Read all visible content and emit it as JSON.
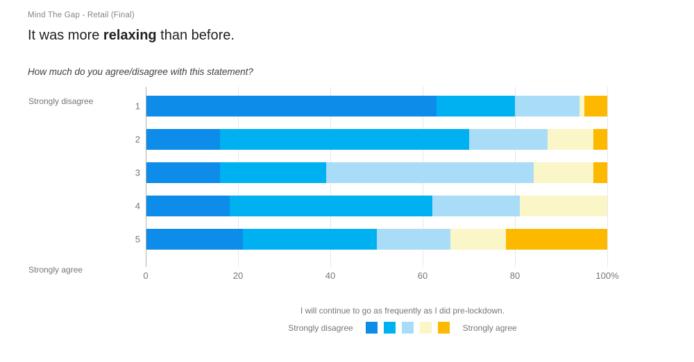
{
  "header": {
    "project_label": "Mind The Gap - Retail (Final)",
    "title": {
      "prefix": "It was more ",
      "emphasis": "relaxing",
      "suffix": " than before."
    },
    "question": "How much do you agree/disagree with this statement?"
  },
  "chart_data": {
    "type": "bar",
    "stacked": true,
    "orientation": "horizontal",
    "title": "It was more relaxing than before.",
    "xlabel": "",
    "ylabel": "",
    "xlim": [
      0,
      100
    ],
    "grid": true,
    "categories": [
      "1",
      "2",
      "3",
      "4",
      "5"
    ],
    "y_axis_top_label": "Strongly disagree",
    "y_axis_bottom_label": "Strongly agree",
    "x_axis": {
      "ticks": [
        0,
        20,
        40,
        60,
        80,
        100
      ],
      "tick_labels": [
        "0",
        "20",
        "40",
        "60",
        "80",
        "100%"
      ]
    },
    "series": [
      {
        "name": "Strongly disagree",
        "color": "#0d8ce9",
        "values": [
          63,
          16,
          16,
          18,
          21
        ]
      },
      {
        "name": "2",
        "color": "#00b1f2",
        "values": [
          17,
          54,
          23,
          44,
          29
        ]
      },
      {
        "name": "3",
        "color": "#a9dcf7",
        "values": [
          14,
          17,
          45,
          19,
          16
        ]
      },
      {
        "name": "4",
        "color": "#fbf6c7",
        "values": [
          1,
          10,
          13,
          19,
          12
        ]
      },
      {
        "name": "Strongly agree",
        "color": "#fcb900",
        "values": [
          5,
          3,
          3,
          0,
          22
        ]
      }
    ],
    "legend": {
      "position": "bottom",
      "title": "I will continue to go as frequently as I did pre-lockdown.",
      "left_label": "Strongly disagree",
      "right_label": "Strongly agree"
    }
  },
  "colors": {
    "axis_line": "#b3b3b3",
    "gridline": "#e7e7e7",
    "muted_text": "#757575",
    "title_text": "#212121",
    "project_text": "#80868b"
  }
}
